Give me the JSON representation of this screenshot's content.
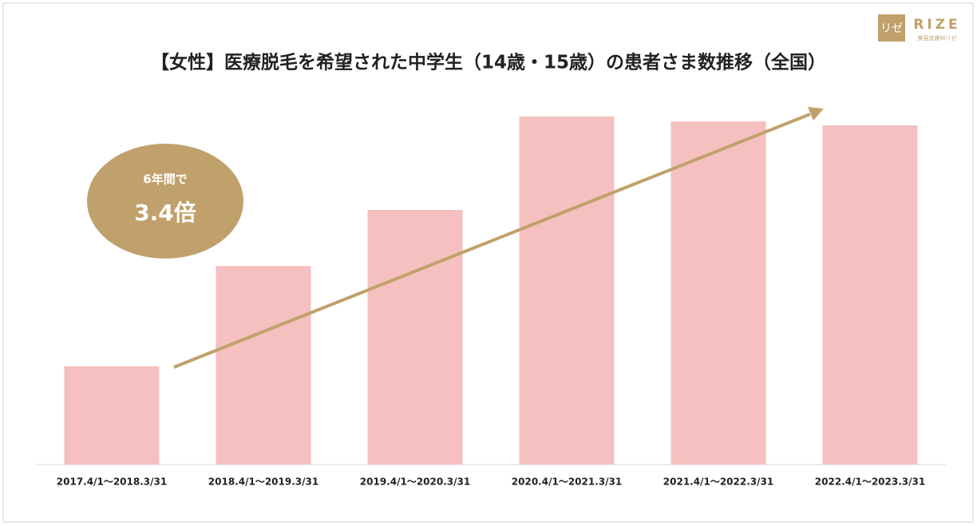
{
  "chart_data": {
    "type": "bar",
    "title": "【女性】医療脱毛を希望された中学生（14歳・15歳）の患者さま数推移（全国）",
    "categories": [
      "2017.4/1～2018.3/31",
      "2018.4/1～2019.3/31",
      "2019.4/1～2020.3/31",
      "2020.4/1～2021.3/31",
      "2021.4/1～2022.3/31",
      "2022.4/1～2023.3/31"
    ],
    "values": [
      100,
      202,
      259,
      354,
      349,
      345
    ],
    "color": "#f5c0bf",
    "annotation": {
      "line1": "6年間で",
      "line2": "3.4倍",
      "color": "#c0a16b"
    }
  },
  "logo": {
    "mark": "リゼ",
    "name": "RIZE",
    "tagline": "美容皮膚科リゼ"
  }
}
